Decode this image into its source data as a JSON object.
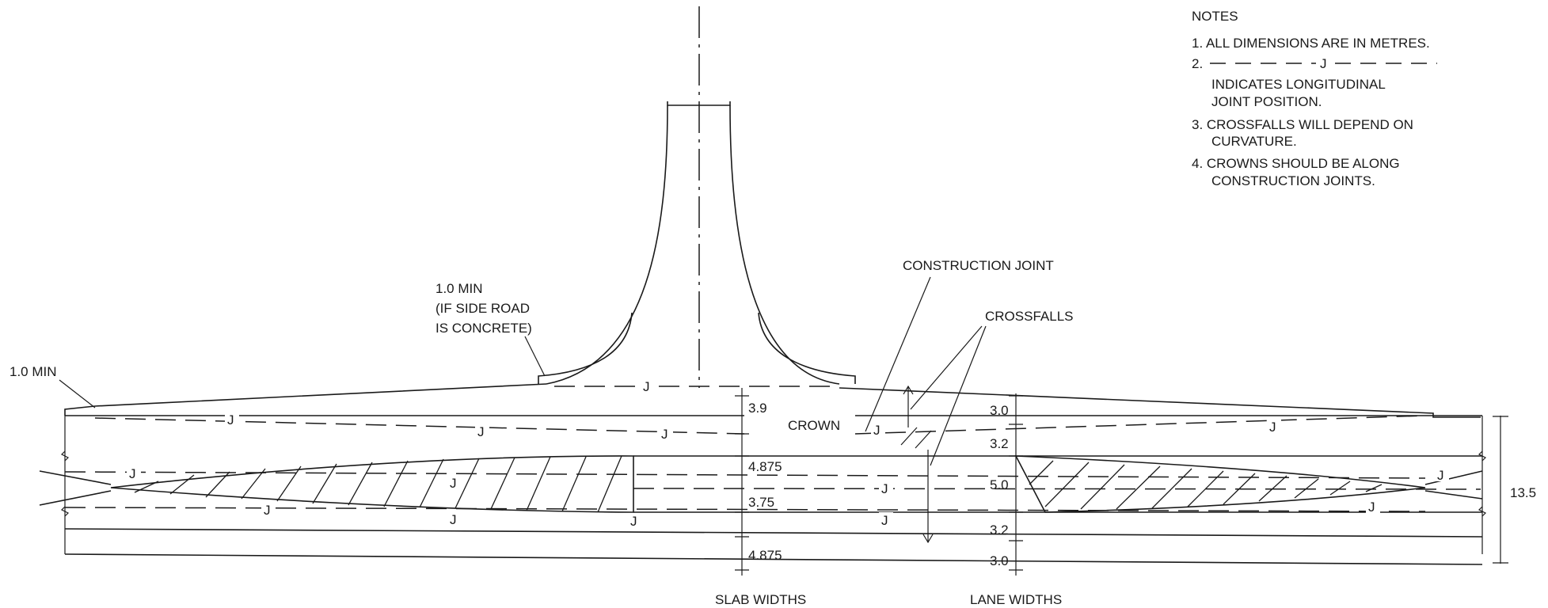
{
  "notes": {
    "heading": "NOTES",
    "items": [
      "1. ALL DIMENSIONS ARE IN METRES.",
      "2.",
      "INDICATES LONGITUDINAL",
      "JOINT POSITION.",
      "3. CROSSFALLS WILL DEPEND ON",
      "CURVATURE.",
      "4. CROWNS SHOULD BE ALONG",
      "CONSTRUCTION JOINTS."
    ],
    "joint_marker": "J"
  },
  "labels": {
    "side_road_min_1": "1.0 MIN",
    "side_road_min_2": "(IF SIDE ROAD",
    "side_road_min_3": "IS CONCRETE)",
    "edge_min": "1.0 MIN",
    "construction_joint": "CONSTRUCTION JOINT",
    "crossfalls": "CROSSFALLS",
    "crown": "CROWN",
    "slab_widths": "SLAB WIDTHS",
    "lane_widths": "LANE WIDTHS",
    "joint": "J"
  },
  "slab_widths": [
    "3.9",
    "4.875",
    "3.75",
    "4.875"
  ],
  "lane_widths": [
    "3.0",
    "3.2",
    "5.0",
    "3.2",
    "3.0"
  ],
  "overall_width": "13.5"
}
